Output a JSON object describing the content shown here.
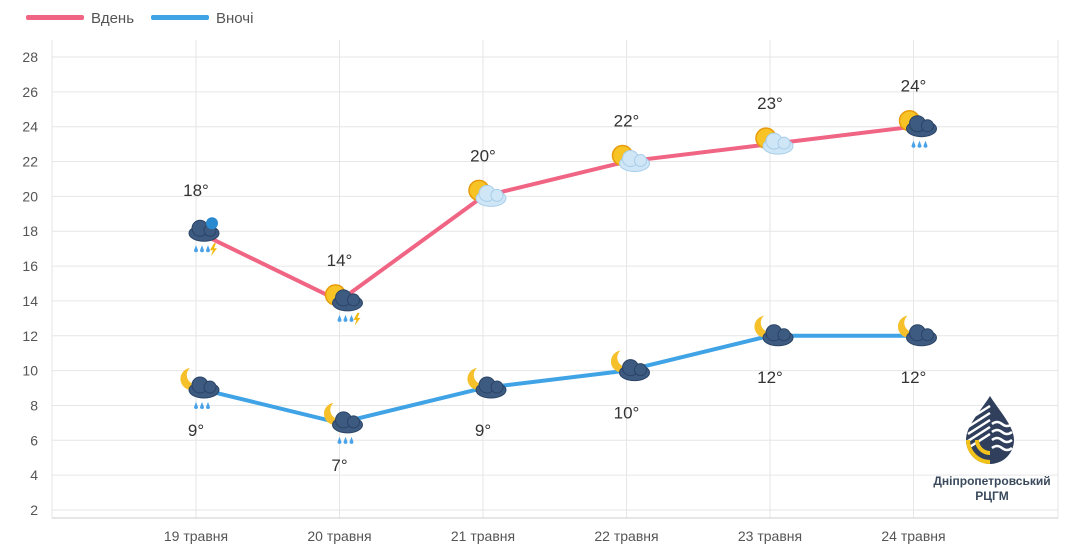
{
  "chart_data": {
    "type": "line",
    "title": "",
    "categories": [
      "19 травня",
      "20 травня",
      "21 травня",
      "22 травня",
      "23 травня",
      "24 травня"
    ],
    "series": [
      {
        "name": "Вдень",
        "color": "#f06584",
        "values": [
          18,
          14,
          20,
          22,
          23,
          24
        ],
        "labels": [
          "18°",
          "14°",
          "20°",
          "22°",
          "23°",
          "24°"
        ],
        "icons": [
          "thunderstorm-rain",
          "sun-cloud-rain-thunder",
          "sun-cloud",
          "sun-cloud",
          "sun-cloud",
          "sun-cloud-rain"
        ]
      },
      {
        "name": "Вночі",
        "color": "#3fa3e6",
        "values": [
          9,
          7,
          9,
          10,
          12,
          12
        ],
        "labels": [
          "9°",
          "7°",
          "9°",
          "10°",
          "12°",
          "12°"
        ],
        "icons": [
          "moon-cloud-rain",
          "moon-cloud-rain",
          "moon-cloud",
          "moon-cloud",
          "moon-cloud",
          "moon-cloud"
        ]
      }
    ],
    "ylim": [
      2,
      28
    ],
    "yticks": [
      2,
      4,
      6,
      8,
      10,
      12,
      14,
      16,
      18,
      20,
      22,
      24,
      26,
      28
    ],
    "grid": true,
    "legend": "top-left"
  },
  "logo": {
    "line1": "Дніпропетровський",
    "line2": "РЦГМ"
  }
}
